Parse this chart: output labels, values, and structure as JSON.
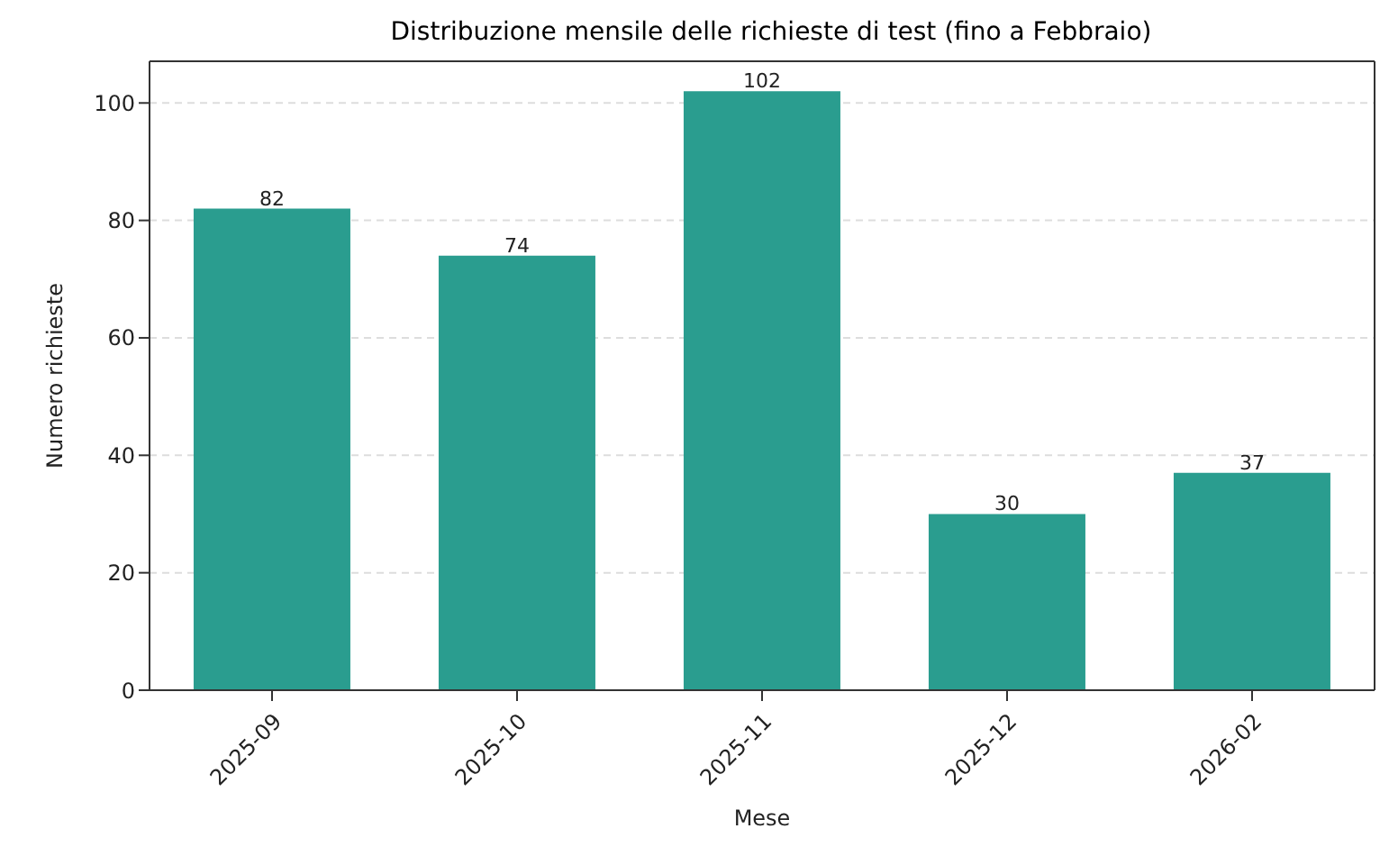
{
  "chart_data": {
    "type": "bar",
    "title": "Distribuzione mensile delle richieste di test (fino a Febbraio)",
    "xlabel": "Mese",
    "ylabel": "Numero richieste",
    "categories": [
      "2025-09",
      "2025-10",
      "2025-11",
      "2025-12",
      "2026-02"
    ],
    "values": [
      82,
      74,
      102,
      30,
      37
    ],
    "color": "#2a9d8f",
    "ylim": [
      0,
      107.1
    ],
    "yticks": [
      0,
      20,
      40,
      60,
      80,
      100
    ],
    "grid": "y",
    "data_labels": true
  }
}
